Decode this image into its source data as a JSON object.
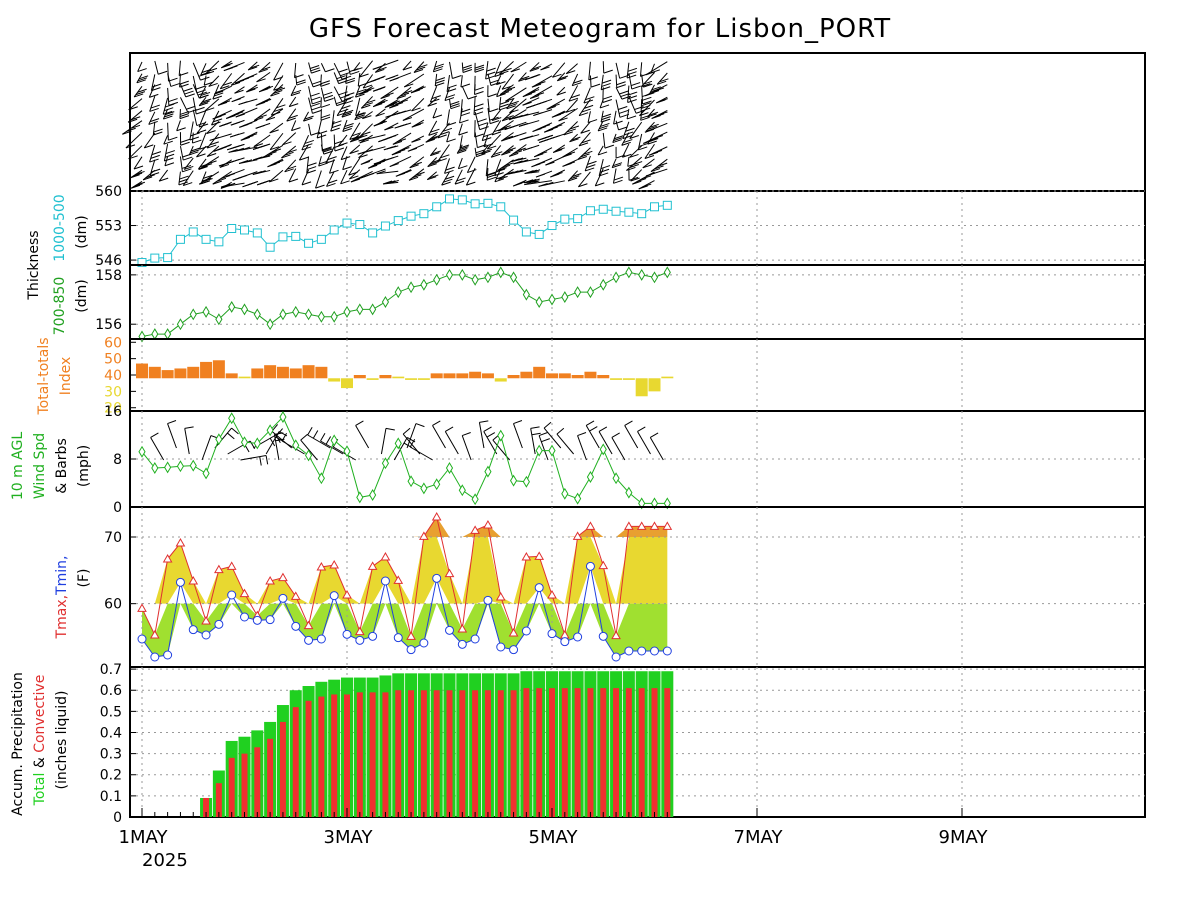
{
  "title": "GFS Forecast Meteogram for Lisbon_PORT",
  "colors": {
    "thickness500": "#20c0d0",
    "thickness850": "#20a020",
    "tt_high": "#f08020",
    "tt_low": "#e8d830",
    "wind_line": "#20b020",
    "tmax": "#e03030",
    "tmin": "#2040e0",
    "fill_warm": "#e8d830",
    "fill_cool": "#a0e030",
    "fill_hot": "#e8a030",
    "precip_total": "#20d020",
    "precip_conv": "#f03030"
  },
  "chart_data": [
    {
      "type": "line",
      "panel": "1000-500 thickness",
      "ylabel": "(dm)",
      "yticks": [
        "546",
        "553",
        "560"
      ],
      "ylim": [
        545,
        560
      ],
      "x_day": [
        1,
        1.125,
        1.25,
        1.375,
        1.5,
        1.625,
        1.75,
        1.875,
        2,
        2.125,
        2.25,
        2.375,
        2.5,
        2.625,
        2.75,
        2.875,
        3,
        3.125,
        3.25,
        3.375,
        3.5,
        3.625,
        3.75,
        3.875,
        4,
        4.125,
        4.25,
        4.375,
        4.5,
        4.625,
        4.75,
        4.875,
        5,
        5.125,
        5.25,
        5.375,
        5.5,
        5.625,
        5.75,
        5.875,
        6,
        6.125
      ],
      "values": [
        545.5,
        546.4,
        546.5,
        550.2,
        551.7,
        550.2,
        549.7,
        552.4,
        552.1,
        551.5,
        548.6,
        550.7,
        550.8,
        549.4,
        550.2,
        552.1,
        553.5,
        553.2,
        551.5,
        552.9,
        554.0,
        554.9,
        555.4,
        556.8,
        558.4,
        558.2,
        557.4,
        557.5,
        556.8,
        554.1,
        551.7,
        551.2,
        553.0,
        554.3,
        554.4,
        556.0,
        556.3,
        555.9,
        555.7,
        555.4,
        556.8,
        557.1
      ]
    },
    {
      "type": "line",
      "panel": "700-850 thickness",
      "ylabel": "(dm)",
      "yticks": [
        "156",
        "158"
      ],
      "ylim": [
        155.4,
        158.4
      ],
      "x_day": [
        1,
        1.125,
        1.25,
        1.375,
        1.5,
        1.625,
        1.75,
        1.875,
        2,
        2.125,
        2.25,
        2.375,
        2.5,
        2.625,
        2.75,
        2.875,
        3,
        3.125,
        3.25,
        3.375,
        3.5,
        3.625,
        3.75,
        3.875,
        4,
        4.125,
        4.25,
        4.375,
        4.5,
        4.625,
        4.75,
        4.875,
        5,
        5.125,
        5.25,
        5.375,
        5.5,
        5.625,
        5.75,
        5.875,
        6,
        6.125
      ],
      "values": [
        155.5,
        155.6,
        155.6,
        156.0,
        156.4,
        156.5,
        156.2,
        156.7,
        156.6,
        156.4,
        156.0,
        156.4,
        156.5,
        156.4,
        156.3,
        156.3,
        156.5,
        156.6,
        156.6,
        156.9,
        157.3,
        157.5,
        157.6,
        157.8,
        158.0,
        158.0,
        157.8,
        157.9,
        158.1,
        157.9,
        157.2,
        156.9,
        157.0,
        157.1,
        157.3,
        157.3,
        157.6,
        157.9,
        158.1,
        158.0,
        157.9,
        158.1
      ]
    },
    {
      "type": "bar",
      "panel": "Total-totals Index",
      "yticks": [
        "20",
        "30",
        "40",
        "50",
        "60"
      ],
      "ylim": [
        20,
        60
      ],
      "baseline": 38,
      "threshold": 40,
      "x_day": [
        1,
        1.125,
        1.25,
        1.375,
        1.5,
        1.625,
        1.75,
        1.875,
        2,
        2.125,
        2.25,
        2.375,
        2.5,
        2.625,
        2.75,
        2.875,
        3,
        3.125,
        3.25,
        3.375,
        3.5,
        3.625,
        3.75,
        3.875,
        4,
        4.125,
        4.25,
        4.375,
        4.5,
        4.625,
        4.75,
        4.875,
        5,
        5.125,
        5.25,
        5.375,
        5.5,
        5.625,
        5.75,
        5.875,
        6,
        6.125
      ],
      "values": [
        47,
        45,
        43,
        44,
        45,
        48,
        49,
        41,
        39,
        44,
        46,
        45,
        44,
        46,
        45,
        36,
        32,
        40,
        37,
        40,
        39,
        37,
        37,
        41,
        41,
        41,
        42,
        41,
        36,
        40,
        42,
        45,
        41,
        41,
        40,
        42,
        40,
        37,
        37,
        27,
        30,
        39
      ]
    },
    {
      "type": "line",
      "panel": "10 m AGL Wind Spd & Barbs",
      "ylabel": "(mph)",
      "yticks": [
        "0",
        "8",
        "16"
      ],
      "ylim": [
        0,
        16
      ],
      "x_day": [
        1,
        1.125,
        1.25,
        1.375,
        1.5,
        1.625,
        1.75,
        1.875,
        2,
        2.125,
        2.25,
        2.375,
        2.5,
        2.625,
        2.75,
        2.875,
        3,
        3.125,
        3.25,
        3.375,
        3.5,
        3.625,
        3.75,
        3.875,
        4,
        4.125,
        4.25,
        4.375,
        4.5,
        4.625,
        4.75,
        4.875,
        5,
        5.125,
        5.25,
        5.375,
        5.5,
        5.625,
        5.75,
        5.875,
        6,
        6.125
      ],
      "values": [
        9.2,
        6.5,
        6.6,
        6.8,
        6.9,
        5.6,
        11.3,
        14.8,
        10.8,
        10.6,
        12.8,
        15.0,
        10.3,
        8.6,
        4.8,
        11.1,
        9.3,
        1.6,
        2.0,
        7.3,
        10.6,
        4.3,
        3.1,
        3.8,
        6.5,
        2.8,
        1.3,
        5.9,
        11.9,
        4.4,
        4.2,
        9.4,
        9.4,
        2.2,
        1.4,
        5.0,
        9.6,
        4.8,
        2.4,
        0.6,
        0.6,
        0.6
      ],
      "barb_dir_deg": [
        300,
        320,
        330,
        340,
        350,
        20,
        40,
        60,
        80,
        60,
        30,
        350,
        310,
        300,
        320,
        300,
        300,
        300,
        330,
        10,
        30,
        20,
        320,
        300,
        330,
        330,
        340,
        350,
        330,
        320,
        340,
        350,
        340,
        320,
        320,
        340,
        330,
        330,
        330,
        330,
        330,
        330
      ]
    },
    {
      "type": "line",
      "panel": "Tmax, Tmin",
      "ylabel": "(F)",
      "yticks": [
        "60",
        "70"
      ],
      "ylim": [
        50.5,
        74.5
      ],
      "x_day": [
        1,
        1.125,
        1.25,
        1.375,
        1.5,
        1.625,
        1.75,
        1.875,
        2,
        2.125,
        2.25,
        2.375,
        2.5,
        2.625,
        2.75,
        2.875,
        3,
        3.125,
        3.25,
        3.375,
        3.5,
        3.625,
        3.75,
        3.875,
        4,
        4.125,
        4.25,
        4.375,
        4.5,
        4.625,
        4.75,
        4.875,
        5,
        5.125,
        5.25,
        5.375,
        5.5,
        5.625,
        5.75,
        5.875,
        6,
        6.125
      ],
      "series": [
        {
          "name": "Tmax",
          "values": [
            59.3,
            55.3,
            66.7,
            69.1,
            63.4,
            57.4,
            65.1,
            65.6,
            61.5,
            58.2,
            63.4,
            63.9,
            61.1,
            56.7,
            65.5,
            65.8,
            61.3,
            55.8,
            65.6,
            67.0,
            63.5,
            55.1,
            70.1,
            73.0,
            64.5,
            56.2,
            71.0,
            71.8,
            61.0,
            55.6,
            67.0,
            67.1,
            61.3,
            55.3,
            70.1,
            71.6,
            65.7,
            55.2,
            71.6,
            71.6,
            71.6,
            71.6
          ]
        },
        {
          "name": "Tmin",
          "values": [
            54.7,
            52.0,
            52.3,
            63.2,
            56.1,
            55.3,
            56.9,
            61.3,
            58.0,
            57.5,
            57.6,
            60.8,
            56.6,
            54.5,
            54.7,
            61.2,
            55.4,
            54.5,
            55.1,
            63.4,
            54.9,
            53.1,
            54.1,
            63.8,
            56.0,
            53.9,
            54.7,
            60.5,
            53.5,
            53.1,
            55.9,
            62.4,
            55.5,
            54.3,
            55.0,
            65.6,
            55.1,
            52.0,
            52.9,
            52.9,
            52.9,
            52.9
          ]
        }
      ]
    },
    {
      "type": "bar",
      "panel": "Accum. Precipitation Total & Convective",
      "ylabel": "(inches liquid)",
      "yticks": [
        "0",
        "0.1",
        "0.2",
        "0.3",
        "0.4",
        "0.5",
        "0.6",
        "0.7"
      ],
      "ylim": [
        0,
        0.7
      ],
      "x_day": [
        1,
        1.125,
        1.25,
        1.375,
        1.5,
        1.625,
        1.75,
        1.875,
        2,
        2.125,
        2.25,
        2.375,
        2.5,
        2.625,
        2.75,
        2.875,
        3,
        3.125,
        3.25,
        3.375,
        3.5,
        3.625,
        3.75,
        3.875,
        4,
        4.125,
        4.25,
        4.375,
        4.5,
        4.625,
        4.75,
        4.875,
        5,
        5.125,
        5.25,
        5.375,
        5.5,
        5.625,
        5.75,
        5.875,
        6,
        6.125
      ],
      "series": [
        {
          "name": "Total",
          "values": [
            0,
            0,
            0,
            0,
            0,
            0.09,
            0.22,
            0.36,
            0.38,
            0.41,
            0.45,
            0.53,
            0.6,
            0.62,
            0.64,
            0.65,
            0.66,
            0.66,
            0.66,
            0.67,
            0.68,
            0.68,
            0.68,
            0.68,
            0.68,
            0.68,
            0.68,
            0.68,
            0.68,
            0.68,
            0.69,
            0.69,
            0.69,
            0.69,
            0.69,
            0.69,
            0.69,
            0.69,
            0.69,
            0.69,
            0.69,
            0.69
          ]
        },
        {
          "name": "Convective",
          "values": [
            0,
            0,
            0,
            0,
            0,
            0.09,
            0.16,
            0.28,
            0.3,
            0.33,
            0.37,
            0.45,
            0.52,
            0.55,
            0.57,
            0.58,
            0.58,
            0.59,
            0.59,
            0.59,
            0.6,
            0.6,
            0.6,
            0.6,
            0.6,
            0.6,
            0.6,
            0.6,
            0.6,
            0.6,
            0.61,
            0.61,
            0.61,
            0.61,
            0.61,
            0.61,
            0.61,
            0.61,
            0.61,
            0.61,
            0.61,
            0.61
          ]
        }
      ]
    }
  ],
  "x_axis": {
    "ticks": [
      {
        "day": 1,
        "label": "1MAY"
      },
      {
        "day": 3,
        "label": "3MAY"
      },
      {
        "day": 5,
        "label": "5MAY"
      },
      {
        "day": 7,
        "label": "7MAY"
      },
      {
        "day": 9,
        "label": "9MAY"
      }
    ],
    "year": "2025"
  },
  "labels": {
    "thickness": "Thickness",
    "thick_500": "1000-500",
    "thick_850": "700-850",
    "dm1": "(dm)",
    "dm2": "(dm)",
    "tt1": "Total-totals",
    "tt2": "Index",
    "wind1": "10 m AGL",
    "wind2": "Wind Spd",
    "wind3": "& Barbs",
    "wind4": "(mph)",
    "tmax": "Tmax,",
    "tmin": "Tmin,",
    "tunit": "(F)",
    "precip1": "Accum. Precipitation",
    "precip_total": "Total",
    "precip_amp": "&",
    "precip_conv": "Convective",
    "precip3": "(inches liquid)"
  }
}
